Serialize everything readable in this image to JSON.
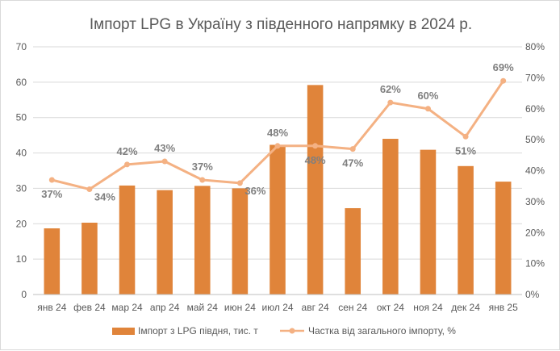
{
  "chart_data": {
    "type": "bar",
    "title": "Імпорт LPG в Україну з південного напрямку в 2024 р.",
    "categories": [
      "янв 24",
      "фев 24",
      "мар 24",
      "апр 24",
      "май 24",
      "июн 24",
      "июл 24",
      "авг 24",
      "сен 24",
      "окт 24",
      "ноя 24",
      "дек 24",
      "янв 25"
    ],
    "series": [
      {
        "name": "Імпорт з LPG півдня, тис. т",
        "type": "bar",
        "axis": "left",
        "color": "#E0843A",
        "values": [
          18.7,
          20.3,
          30.8,
          29.5,
          30.7,
          30.0,
          42.3,
          59.2,
          24.4,
          44.0,
          40.9,
          36.3,
          31.9
        ]
      },
      {
        "name": "Частка від загального імпорту, %",
        "type": "line",
        "axis": "right",
        "color": "#F4B183",
        "values": [
          37,
          34,
          42,
          43,
          37,
          36,
          48,
          48,
          47,
          62,
          60,
          51,
          69
        ],
        "labels": [
          "37%",
          "34%",
          "42%",
          "43%",
          "37%",
          "36%",
          "48%",
          "48%",
          "47%",
          "62%",
          "60%",
          "51%",
          "69%"
        ]
      }
    ],
    "y_left": {
      "min": 0,
      "max": 70,
      "step": 10,
      "ticks": [
        "0",
        "10",
        "20",
        "30",
        "40",
        "50",
        "60",
        "70"
      ]
    },
    "y_right": {
      "min": 0,
      "max": 80,
      "step": 10,
      "ticks": [
        "0%",
        "10%",
        "20%",
        "30%",
        "40%",
        "50%",
        "60%",
        "70%",
        "80%"
      ]
    },
    "grid": true,
    "legend_position": "bottom"
  }
}
